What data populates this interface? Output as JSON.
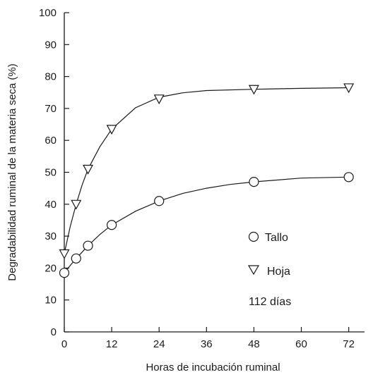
{
  "chart_data": {
    "type": "line",
    "xlabel": "Horas de incubación ruminal",
    "ylabel": "Degradabilidad ruminal de la materia seca (%)",
    "xlim": [
      0,
      76
    ],
    "ylim": [
      0,
      100
    ],
    "xticks": [
      0,
      12,
      24,
      36,
      48,
      60,
      72
    ],
    "yticks": [
      0,
      10,
      20,
      30,
      40,
      50,
      60,
      70,
      80,
      90,
      100
    ],
    "grid": false,
    "legend_position": "bottom-right",
    "annotation": "112 días",
    "series": [
      {
        "name": "Tallo",
        "marker": "circle",
        "points": [
          [
            0,
            18.5
          ],
          [
            3,
            23
          ],
          [
            6,
            27
          ],
          [
            12,
            33.5
          ],
          [
            24,
            41
          ],
          [
            48,
            47
          ],
          [
            72,
            48.5
          ]
        ],
        "curve": [
          [
            0,
            18.5
          ],
          [
            1.5,
            20.8
          ],
          [
            3,
            23
          ],
          [
            4.5,
            25
          ],
          [
            6,
            27
          ],
          [
            9,
            30.5
          ],
          [
            12,
            33.5
          ],
          [
            18,
            37.8
          ],
          [
            24,
            41
          ],
          [
            30,
            43.4
          ],
          [
            36,
            45
          ],
          [
            42,
            46.2
          ],
          [
            48,
            47
          ],
          [
            60,
            48.2
          ],
          [
            72,
            48.5
          ]
        ]
      },
      {
        "name": "Hoja",
        "marker": "triangle-down",
        "points": [
          [
            0,
            24.5
          ],
          [
            3,
            40
          ],
          [
            6,
            51
          ],
          [
            12,
            63.5
          ],
          [
            24,
            73
          ],
          [
            48,
            76
          ],
          [
            72,
            76.5
          ]
        ],
        "curve": [
          [
            0,
            24.5
          ],
          [
            1.5,
            33
          ],
          [
            3,
            40
          ],
          [
            4.5,
            46
          ],
          [
            6,
            51
          ],
          [
            9,
            58
          ],
          [
            12,
            63.5
          ],
          [
            18,
            70.2
          ],
          [
            24,
            73.5
          ],
          [
            30,
            74.9
          ],
          [
            36,
            75.6
          ],
          [
            48,
            76
          ],
          [
            60,
            76.3
          ],
          [
            72,
            76.5
          ]
        ]
      }
    ]
  }
}
